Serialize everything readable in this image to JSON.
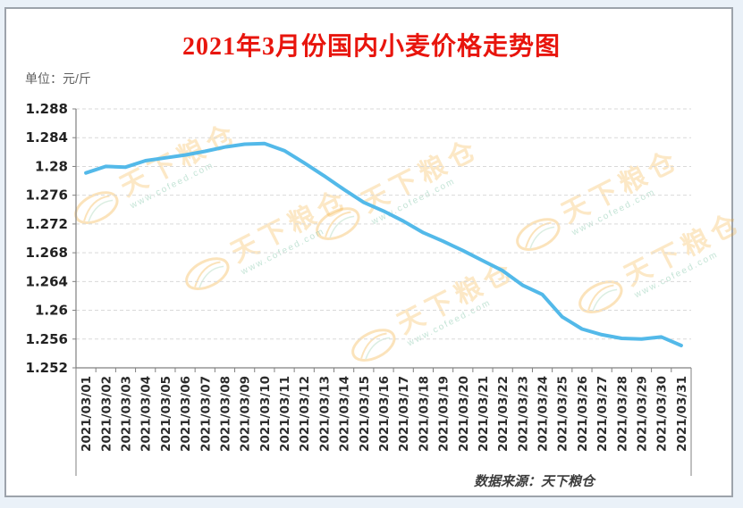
{
  "window": {
    "background": "#eaf1f8",
    "panel_border_color": "#9da3ab"
  },
  "header": {
    "title": "2021年3月份国内小麦价格走势图",
    "title_color": "#e8150d",
    "unit_label": "单位：元/斤"
  },
  "footer": {
    "source_label": "数据来源：天下粮仓"
  },
  "watermark": {
    "text": "天下粮仓",
    "subtext": "www.cofeed.com",
    "color": "#f5a623"
  },
  "chart_data": {
    "type": "line",
    "title": "2021年3月份国内小麦价格走势图",
    "xlabel": "",
    "ylabel": "元/斤",
    "categories": [
      "2021/03/01",
      "2021/03/02",
      "2021/03/03",
      "2021/03/04",
      "2021/03/05",
      "2021/03/06",
      "2021/03/07",
      "2021/03/08",
      "2021/03/09",
      "2021/03/10",
      "2021/03/11",
      "2021/03/12",
      "2021/03/13",
      "2021/03/14",
      "2021/03/15",
      "2021/03/16",
      "2021/03/17",
      "2021/03/18",
      "2021/03/19",
      "2021/03/20",
      "2021/03/21",
      "2021/03/22",
      "2021/03/23",
      "2021/03/24",
      "2021/03/25",
      "2021/03/26",
      "2021/03/27",
      "2021/03/28",
      "2021/03/29",
      "2021/03/30",
      "2021/03/31"
    ],
    "values": [
      1.2791,
      1.28,
      1.2799,
      1.2808,
      1.2812,
      1.2816,
      1.2821,
      1.2827,
      1.2831,
      1.2832,
      1.2822,
      1.2805,
      1.2787,
      1.2768,
      1.275,
      1.2738,
      1.2724,
      1.2708,
      1.2696,
      1.2683,
      1.2669,
      1.2655,
      1.2635,
      1.2622,
      1.2591,
      1.2574,
      1.2566,
      1.2561,
      1.256,
      1.2563,
      1.2551
    ],
    "ylim": [
      1.252,
      1.288
    ],
    "ytick_labels": [
      "1.288",
      "1.284",
      "1.28",
      "1.276",
      "1.272",
      "1.268",
      "1.264",
      "1.26",
      "1.256",
      "1.252"
    ],
    "grid": "horizontal-dashed",
    "legend_position": "none",
    "line_color": "#53b9e9",
    "axis_color": "#808080",
    "grid_color": "#d9d9d9",
    "tick_label_color": "#222222"
  }
}
